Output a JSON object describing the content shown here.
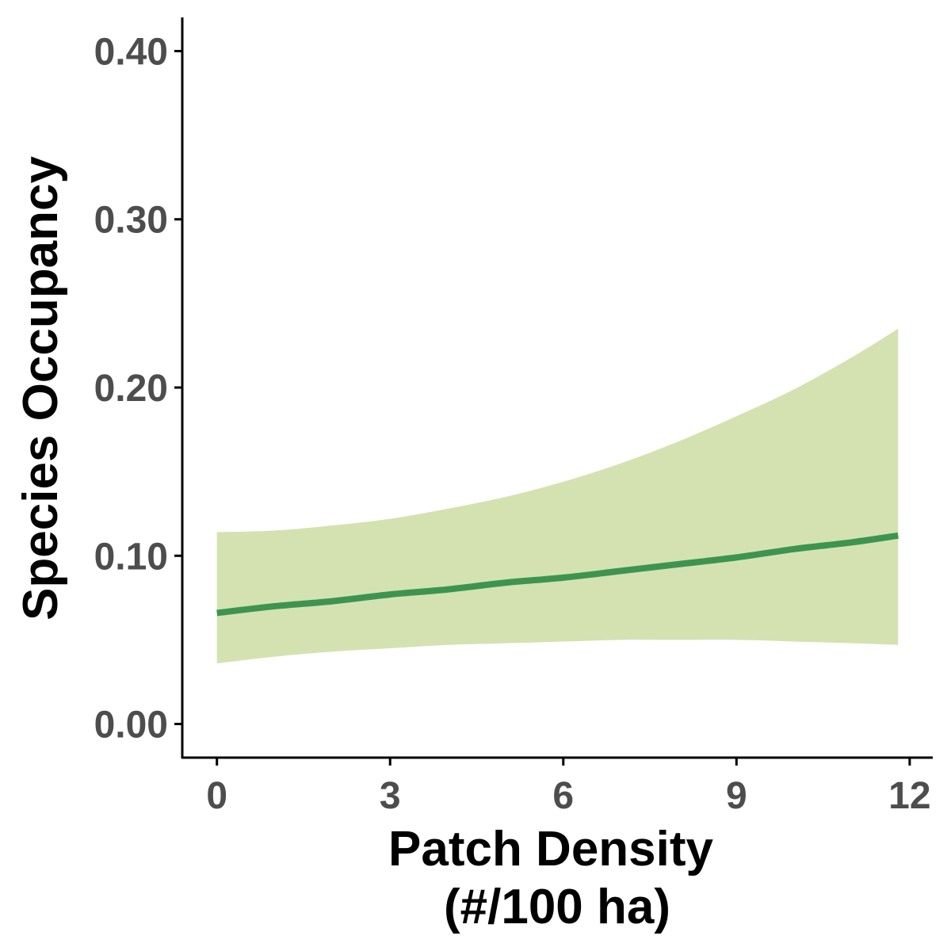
{
  "chart_data": {
    "type": "line",
    "title": "",
    "xlabel": "Patch Density",
    "xlabel_line2": "(#/100 ha)",
    "ylabel": "Species Occupancy",
    "xlim": [
      -0.6,
      12.4
    ],
    "ylim": [
      -0.02,
      0.42
    ],
    "x_ticks": [
      0,
      3,
      6,
      9,
      12
    ],
    "x_tick_labels": [
      "0",
      "3",
      "6",
      "9",
      "12"
    ],
    "y_ticks": [
      0.0,
      0.1,
      0.2,
      0.3,
      0.4
    ],
    "y_tick_labels": [
      "0.00",
      "0.10",
      "0.20",
      "0.30",
      "0.40"
    ],
    "grid": false,
    "legend": "none",
    "colors": {
      "line": "#3d9450",
      "ribbon": "#d4e2b2",
      "axis": "#000000",
      "tick_label": "#4d4d4d"
    },
    "series": [
      {
        "x": [
          0,
          1,
          2,
          3,
          4,
          5,
          6,
          7,
          8,
          9,
          10,
          11,
          11.8
        ],
        "y": [
          0.066,
          0.07,
          0.073,
          0.077,
          0.08,
          0.084,
          0.087,
          0.091,
          0.095,
          0.099,
          0.104,
          0.108,
          0.112
        ],
        "lower": [
          0.036,
          0.04,
          0.043,
          0.045,
          0.047,
          0.048,
          0.049,
          0.05,
          0.05,
          0.05,
          0.049,
          0.048,
          0.047
        ],
        "upper": [
          0.114,
          0.115,
          0.118,
          0.122,
          0.128,
          0.135,
          0.144,
          0.155,
          0.168,
          0.183,
          0.199,
          0.218,
          0.235
        ]
      }
    ]
  }
}
